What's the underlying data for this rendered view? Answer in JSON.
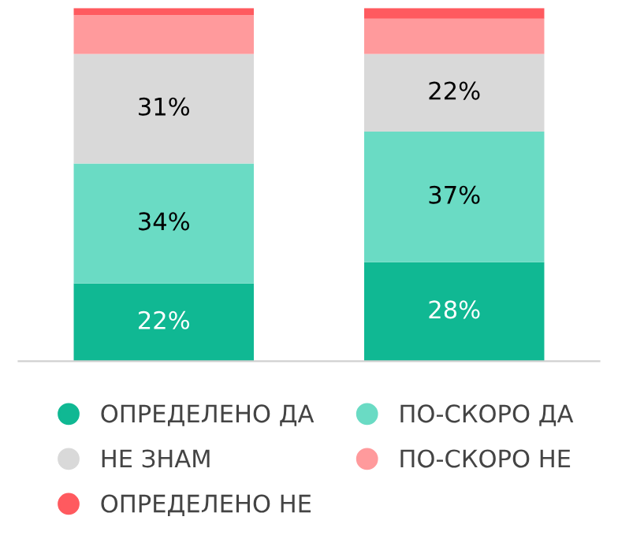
{
  "chart_data": {
    "type": "bar",
    "stacked": true,
    "categories": [
      null,
      null
    ],
    "ylim": [
      0,
      100
    ],
    "tick_labels": false,
    "grid": false,
    "legend": "bottom",
    "series": [
      {
        "name": "ОПРЕДЕЛЕНО ДА",
        "color": "#10b893",
        "values": [
          22,
          28
        ],
        "value_labels": [
          "22%",
          "28%"
        ]
      },
      {
        "name": "ПО-СКОРО ДА",
        "color": "#6adbc4",
        "values": [
          34,
          37
        ],
        "value_labels": [
          "34%",
          "37%"
        ]
      },
      {
        "name": "НЕ ЗНАМ",
        "color": "#d9d9d9",
        "values": [
          31,
          22
        ],
        "value_labels": [
          "31%",
          "22%"
        ]
      },
      {
        "name": "ПО-СКОРО НЕ",
        "color": "#ff9a9c",
        "values": [
          11,
          10
        ],
        "value_labels": [
          null,
          null
        ]
      },
      {
        "name": "ОПРЕДЕЛЕНО НЕ",
        "color": "#ff5a5f",
        "values": [
          2,
          3
        ],
        "value_labels": [
          null,
          null
        ]
      }
    ]
  }
}
